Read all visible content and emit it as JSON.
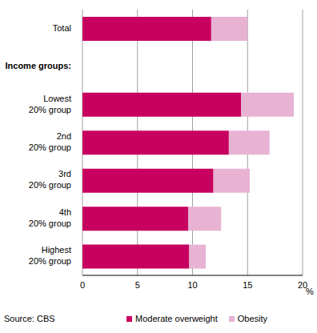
{
  "chart_data": {
    "type": "bar",
    "orientation": "horizontal",
    "stacked": true,
    "categories": [
      "Total",
      "Income groups:",
      "Lowest 20% group",
      "2nd 20% group",
      "3rd 20% group",
      "4th 20% group",
      "Highest 20% group"
    ],
    "series": [
      {
        "name": "Moderate overweight",
        "color": "#c8005f",
        "values": [
          11.7,
          null,
          14.4,
          13.3,
          11.9,
          9.6,
          9.7
        ]
      },
      {
        "name": "Obesity",
        "color": "#e8b3d3",
        "values": [
          3.3,
          null,
          4.8,
          3.7,
          3.3,
          3.0,
          1.5
        ]
      }
    ],
    "xlabel": "%",
    "xlim": [
      0,
      20
    ],
    "xticks": [
      0,
      5,
      10,
      15,
      20
    ],
    "grid": true,
    "legend": "bottom",
    "source": "Source: CBS"
  }
}
